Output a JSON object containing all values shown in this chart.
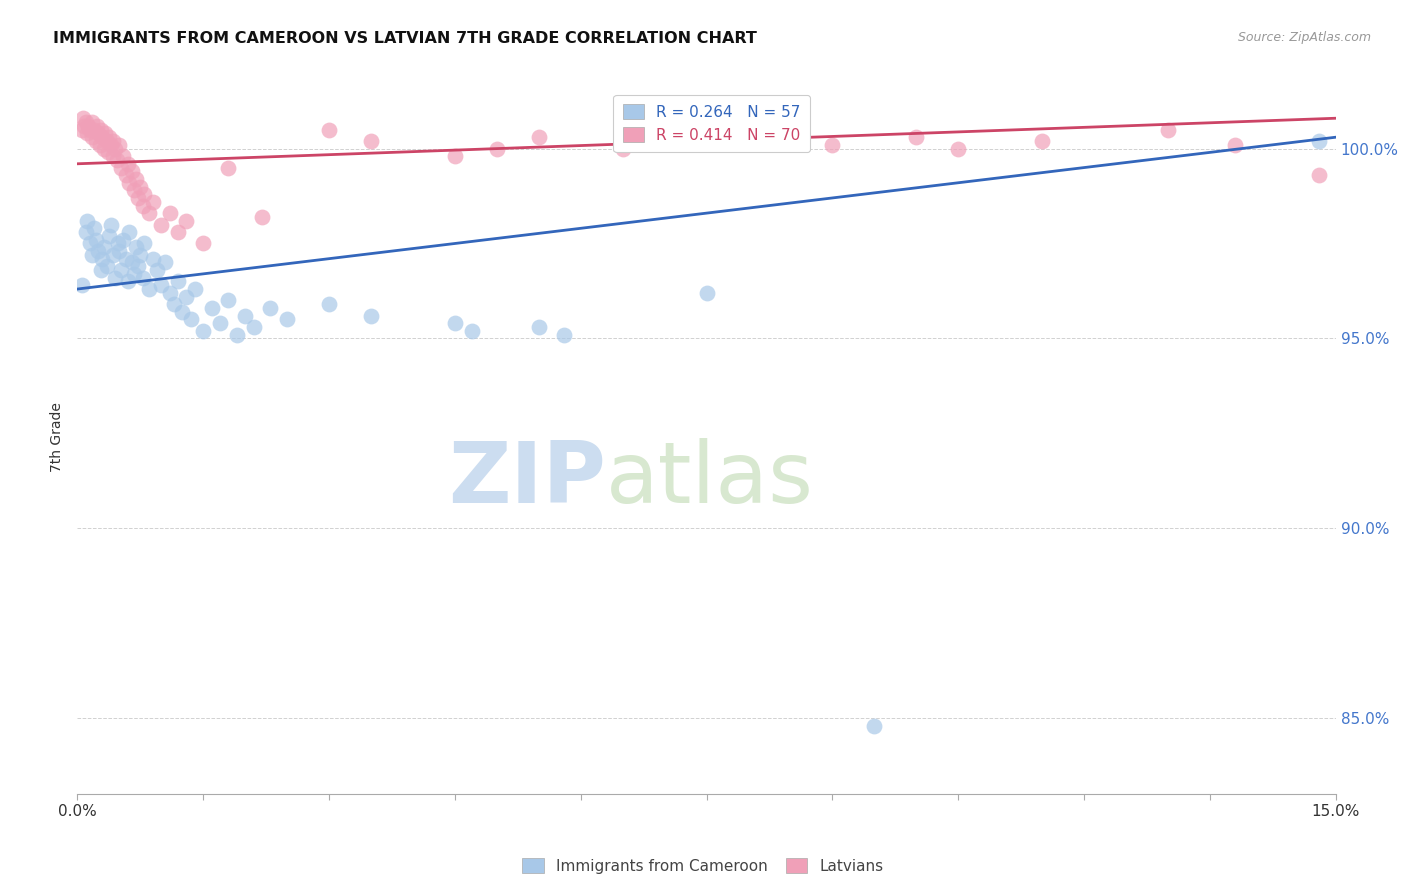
{
  "title": "IMMIGRANTS FROM CAMEROON VS LATVIAN 7TH GRADE CORRELATION CHART",
  "source": "Source: ZipAtlas.com",
  "ylabel": "7th Grade",
  "yticks": [
    85.0,
    90.0,
    95.0,
    100.0
  ],
  "ytick_labels": [
    "85.0%",
    "90.0%",
    "95.0%",
    "100.0%"
  ],
  "xmin": 0.0,
  "xmax": 15.0,
  "ymin": 83.0,
  "ymax": 101.8,
  "legend_blue_R": "R = 0.264",
  "legend_blue_N": "N = 57",
  "legend_pink_R": "R = 0.414",
  "legend_pink_N": "N = 70",
  "legend_label_blue": "Immigrants from Cameroon",
  "legend_label_pink": "Latvians",
  "blue_color": "#a8c8e8",
  "pink_color": "#f0a0b8",
  "blue_line_color": "#3366bb",
  "pink_line_color": "#cc4466",
  "watermark_zip": "ZIP",
  "watermark_atlas": "atlas",
  "blue_scatter": [
    [
      0.05,
      96.4
    ],
    [
      0.1,
      97.8
    ],
    [
      0.12,
      98.1
    ],
    [
      0.15,
      97.5
    ],
    [
      0.18,
      97.2
    ],
    [
      0.2,
      97.9
    ],
    [
      0.22,
      97.6
    ],
    [
      0.25,
      97.3
    ],
    [
      0.28,
      96.8
    ],
    [
      0.3,
      97.1
    ],
    [
      0.32,
      97.4
    ],
    [
      0.35,
      96.9
    ],
    [
      0.38,
      97.7
    ],
    [
      0.4,
      98.0
    ],
    [
      0.42,
      97.2
    ],
    [
      0.45,
      96.6
    ],
    [
      0.48,
      97.5
    ],
    [
      0.5,
      97.3
    ],
    [
      0.52,
      96.8
    ],
    [
      0.55,
      97.6
    ],
    [
      0.58,
      97.1
    ],
    [
      0.6,
      96.5
    ],
    [
      0.62,
      97.8
    ],
    [
      0.65,
      97.0
    ],
    [
      0.68,
      96.7
    ],
    [
      0.7,
      97.4
    ],
    [
      0.72,
      96.9
    ],
    [
      0.75,
      97.2
    ],
    [
      0.78,
      96.6
    ],
    [
      0.8,
      97.5
    ],
    [
      0.85,
      96.3
    ],
    [
      0.9,
      97.1
    ],
    [
      0.95,
      96.8
    ],
    [
      1.0,
      96.4
    ],
    [
      1.05,
      97.0
    ],
    [
      1.1,
      96.2
    ],
    [
      1.15,
      95.9
    ],
    [
      1.2,
      96.5
    ],
    [
      1.25,
      95.7
    ],
    [
      1.3,
      96.1
    ],
    [
      1.35,
      95.5
    ],
    [
      1.4,
      96.3
    ],
    [
      1.5,
      95.2
    ],
    [
      1.6,
      95.8
    ],
    [
      1.7,
      95.4
    ],
    [
      1.8,
      96.0
    ],
    [
      1.9,
      95.1
    ],
    [
      2.0,
      95.6
    ],
    [
      2.1,
      95.3
    ],
    [
      2.3,
      95.8
    ],
    [
      2.5,
      95.5
    ],
    [
      3.0,
      95.9
    ],
    [
      3.5,
      95.6
    ],
    [
      4.5,
      95.4
    ],
    [
      4.7,
      95.2
    ],
    [
      5.5,
      95.3
    ],
    [
      5.8,
      95.1
    ],
    [
      7.5,
      96.2
    ],
    [
      9.5,
      84.8
    ],
    [
      14.8,
      100.2
    ]
  ],
  "pink_scatter": [
    [
      0.05,
      100.5
    ],
    [
      0.07,
      100.8
    ],
    [
      0.08,
      100.6
    ],
    [
      0.1,
      100.7
    ],
    [
      0.12,
      100.4
    ],
    [
      0.13,
      100.6
    ],
    [
      0.15,
      100.5
    ],
    [
      0.17,
      100.3
    ],
    [
      0.18,
      100.7
    ],
    [
      0.2,
      100.5
    ],
    [
      0.22,
      100.2
    ],
    [
      0.23,
      100.6
    ],
    [
      0.25,
      100.4
    ],
    [
      0.27,
      100.1
    ],
    [
      0.28,
      100.5
    ],
    [
      0.3,
      100.3
    ],
    [
      0.32,
      100.0
    ],
    [
      0.33,
      100.4
    ],
    [
      0.35,
      100.2
    ],
    [
      0.37,
      99.9
    ],
    [
      0.38,
      100.3
    ],
    [
      0.4,
      100.1
    ],
    [
      0.42,
      99.8
    ],
    [
      0.43,
      100.2
    ],
    [
      0.45,
      100.0
    ],
    [
      0.47,
      99.7
    ],
    [
      0.5,
      100.1
    ],
    [
      0.52,
      99.5
    ],
    [
      0.55,
      99.8
    ],
    [
      0.58,
      99.3
    ],
    [
      0.6,
      99.6
    ],
    [
      0.62,
      99.1
    ],
    [
      0.65,
      99.4
    ],
    [
      0.68,
      98.9
    ],
    [
      0.7,
      99.2
    ],
    [
      0.72,
      98.7
    ],
    [
      0.75,
      99.0
    ],
    [
      0.78,
      98.5
    ],
    [
      0.8,
      98.8
    ],
    [
      0.85,
      98.3
    ],
    [
      0.9,
      98.6
    ],
    [
      1.0,
      98.0
    ],
    [
      1.1,
      98.3
    ],
    [
      1.2,
      97.8
    ],
    [
      1.3,
      98.1
    ],
    [
      1.5,
      97.5
    ],
    [
      1.8,
      99.5
    ],
    [
      2.2,
      98.2
    ],
    [
      3.0,
      100.5
    ],
    [
      3.5,
      100.2
    ],
    [
      4.5,
      99.8
    ],
    [
      5.0,
      100.0
    ],
    [
      5.5,
      100.3
    ],
    [
      6.5,
      100.0
    ],
    [
      7.0,
      100.2
    ],
    [
      8.5,
      100.4
    ],
    [
      9.0,
      100.1
    ],
    [
      10.0,
      100.3
    ],
    [
      10.5,
      100.0
    ],
    [
      11.5,
      100.2
    ],
    [
      13.0,
      100.5
    ],
    [
      13.8,
      100.1
    ],
    [
      14.8,
      99.3
    ]
  ],
  "blue_trendline": [
    [
      0.0,
      96.3
    ],
    [
      15.0,
      100.3
    ]
  ],
  "pink_trendline": [
    [
      0.0,
      99.6
    ],
    [
      15.0,
      100.8
    ]
  ],
  "xtick_positions": [
    0.0,
    1.5,
    3.0,
    4.5,
    6.0,
    7.5,
    9.0,
    10.5,
    12.0,
    13.5,
    15.0
  ]
}
